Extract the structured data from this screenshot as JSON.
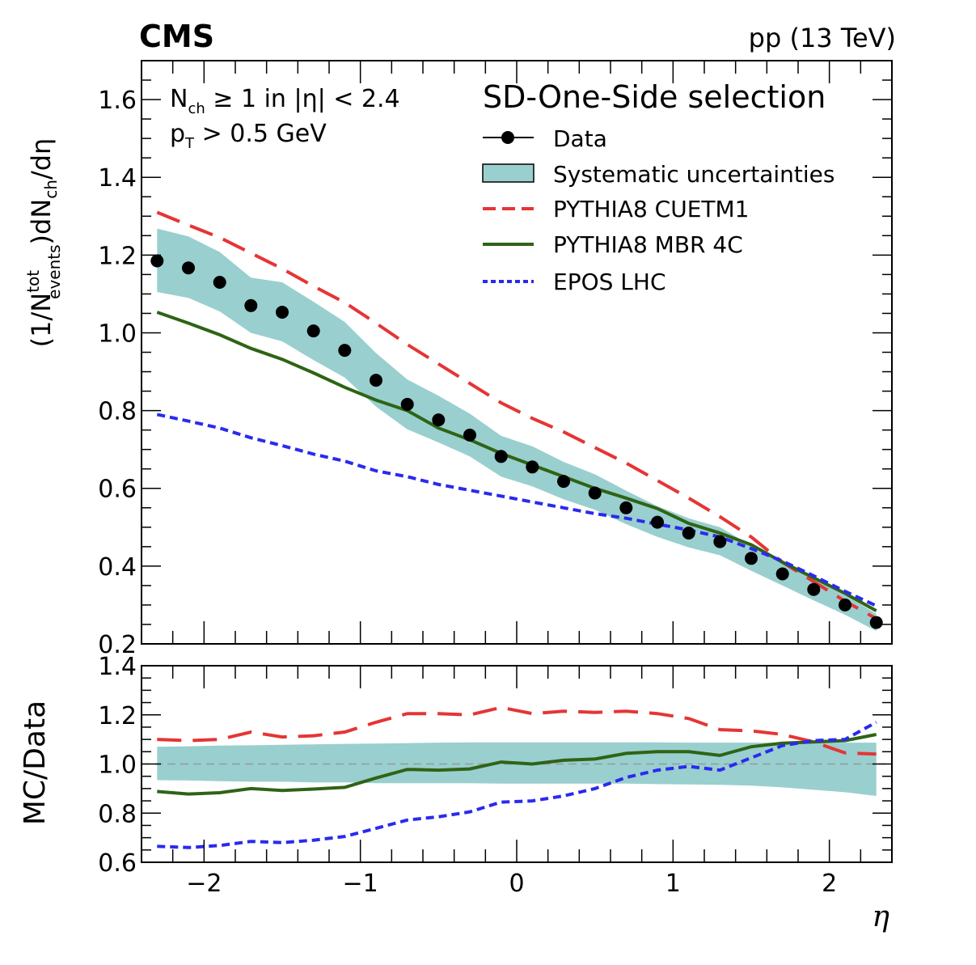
{
  "header": {
    "experiment": "CMS",
    "energy": "pp (13 TeV)"
  },
  "annotation": {
    "line1_a": "N",
    "line1_sub": "ch",
    "line1_b": " ≥ 1 in |η| < 2.4",
    "line2_a": "p",
    "line2_sub": "T",
    "line2_b": " > 0.5 GeV"
  },
  "legend": {
    "title": "SD-One-Side selection",
    "entries": [
      "Data",
      "Systematic uncertainties",
      "PYTHIA8 CUETM1",
      "PYTHIA8 MBR 4C",
      "EPOS LHC"
    ]
  },
  "colors": {
    "band": "#99cfcf",
    "pythia_cuetm1": "#e53535",
    "pythia_mbr": "#2e6414",
    "epos": "#2a2aee",
    "data": "#000000"
  },
  "chart_data": [
    {
      "type": "line",
      "panel": "main",
      "ylabel": "(1/N_events^tot)dN_ch/dη",
      "ylabel_parts": {
        "a": "(1/N",
        "sup": "tot",
        "sub": "events",
        "b": ")dN",
        "sub2": "ch",
        "c": "/dη"
      },
      "xlim": [
        -2.4,
        2.4
      ],
      "ylim": [
        0.2,
        1.7
      ],
      "yticks": [
        0.2,
        0.4,
        0.6,
        0.8,
        1.0,
        1.2,
        1.4,
        1.6
      ],
      "ytick_labels": [
        "0.2",
        "0.4",
        "0.6",
        "0.8",
        "1.0",
        "1.2",
        "1.4",
        "1.6"
      ],
      "x": [
        -2.3,
        -2.1,
        -1.9,
        -1.7,
        -1.5,
        -1.3,
        -1.1,
        -0.9,
        -0.7,
        -0.5,
        -0.3,
        -0.1,
        0.1,
        0.3,
        0.5,
        0.7,
        0.9,
        1.1,
        1.3,
        1.5,
        1.7,
        1.9,
        2.1,
        2.3
      ],
      "series": [
        {
          "name": "Data",
          "values": [
            1.185,
            1.167,
            1.13,
            1.07,
            1.053,
            1.005,
            0.955,
            0.878,
            0.816,
            0.776,
            0.737,
            0.682,
            0.655,
            0.618,
            0.588,
            0.55,
            0.513,
            0.485,
            0.463,
            0.42,
            0.38,
            0.34,
            0.3,
            0.255
          ]
        },
        {
          "name": "Systematic uncertainties",
          "low": [
            1.105,
            1.09,
            1.055,
            1.0,
            0.978,
            0.93,
            0.885,
            0.81,
            0.752,
            0.718,
            0.682,
            0.63,
            0.605,
            0.572,
            0.545,
            0.508,
            0.475,
            0.448,
            0.428,
            0.388,
            0.35,
            0.312,
            0.275,
            0.233
          ],
          "high": [
            1.268,
            1.248,
            1.208,
            1.142,
            1.13,
            1.08,
            1.028,
            0.948,
            0.88,
            0.838,
            0.792,
            0.735,
            0.708,
            0.668,
            0.636,
            0.594,
            0.554,
            0.523,
            0.5,
            0.453,
            0.412,
            0.368,
            0.327,
            0.277
          ]
        },
        {
          "name": "PYTHIA8 CUETM1",
          "values": [
            1.31,
            1.277,
            1.245,
            1.205,
            1.165,
            1.12,
            1.078,
            1.025,
            0.97,
            0.92,
            0.87,
            0.82,
            0.78,
            0.745,
            0.705,
            0.665,
            0.62,
            0.575,
            0.527,
            0.475,
            0.41,
            0.36,
            0.31,
            0.265
          ]
        },
        {
          "name": "PYTHIA8 MBR 4C",
          "values": [
            1.053,
            1.025,
            0.995,
            0.96,
            0.932,
            0.897,
            0.86,
            0.827,
            0.8,
            0.755,
            0.725,
            0.69,
            0.66,
            0.63,
            0.6,
            0.575,
            0.548,
            0.51,
            0.485,
            0.455,
            0.41,
            0.37,
            0.33,
            0.285
          ]
        },
        {
          "name": "EPOS LHC",
          "values": [
            0.79,
            0.773,
            0.755,
            0.73,
            0.71,
            0.688,
            0.67,
            0.645,
            0.63,
            0.61,
            0.595,
            0.58,
            0.565,
            0.55,
            0.535,
            0.523,
            0.508,
            0.493,
            0.475,
            0.445,
            0.413,
            0.375,
            0.335,
            0.298
          ]
        }
      ]
    },
    {
      "type": "line",
      "panel": "ratio",
      "ylabel": "MC/Data",
      "xlabel": "η",
      "xlim": [
        -2.4,
        2.4
      ],
      "ylim": [
        0.6,
        1.4
      ],
      "xticks": [
        -2,
        -1,
        0,
        1,
        2
      ],
      "xtick_labels": [
        "−2",
        "−1",
        "0",
        "1",
        "2"
      ],
      "yticks": [
        0.6,
        0.8,
        1.0,
        1.2,
        1.4
      ],
      "ytick_labels": [
        "0.6",
        "0.8",
        "1.0",
        "1.2",
        "1.4"
      ],
      "x": [
        -2.3,
        -2.1,
        -1.9,
        -1.7,
        -1.5,
        -1.3,
        -1.1,
        -0.9,
        -0.7,
        -0.5,
        -0.3,
        -0.1,
        0.1,
        0.3,
        0.5,
        0.7,
        0.9,
        1.1,
        1.3,
        1.5,
        1.7,
        1.9,
        2.1,
        2.3
      ],
      "reference_line": 1.0,
      "series": [
        {
          "name": "Systematic uncertainties",
          "low": [
            0.934,
            0.933,
            0.93,
            0.928,
            0.928,
            0.925,
            0.925,
            0.922,
            0.922,
            0.922,
            0.922,
            0.92,
            0.92,
            0.92,
            0.92,
            0.92,
            0.918,
            0.917,
            0.915,
            0.912,
            0.905,
            0.895,
            0.885,
            0.87
          ],
          "high": [
            1.07,
            1.072,
            1.075,
            1.076,
            1.078,
            1.08,
            1.082,
            1.083,
            1.085,
            1.087,
            1.088,
            1.088,
            1.088,
            1.088,
            1.088,
            1.088,
            1.088,
            1.087,
            1.087,
            1.087,
            1.087,
            1.087,
            1.087,
            1.087
          ]
        },
        {
          "name": "PYTHIA8 CUETM1",
          "values": [
            1.1,
            1.095,
            1.1,
            1.13,
            1.11,
            1.115,
            1.13,
            1.17,
            1.205,
            1.205,
            1.2,
            1.23,
            1.205,
            1.215,
            1.21,
            1.215,
            1.205,
            1.185,
            1.14,
            1.135,
            1.12,
            1.09,
            1.045,
            1.04
          ]
        },
        {
          "name": "PYTHIA8 MBR 4C",
          "values": [
            0.888,
            0.878,
            0.883,
            0.9,
            0.892,
            0.898,
            0.905,
            0.943,
            0.978,
            0.975,
            0.98,
            1.008,
            1.0,
            1.015,
            1.02,
            1.043,
            1.05,
            1.05,
            1.035,
            1.07,
            1.085,
            1.09,
            1.095,
            1.12
          ]
        },
        {
          "name": "EPOS LHC",
          "values": [
            0.665,
            0.66,
            0.668,
            0.685,
            0.68,
            0.69,
            0.705,
            0.738,
            0.772,
            0.785,
            0.805,
            0.845,
            0.85,
            0.87,
            0.9,
            0.945,
            0.975,
            0.99,
            0.975,
            1.025,
            1.075,
            1.095,
            1.1,
            1.17
          ]
        }
      ]
    }
  ]
}
